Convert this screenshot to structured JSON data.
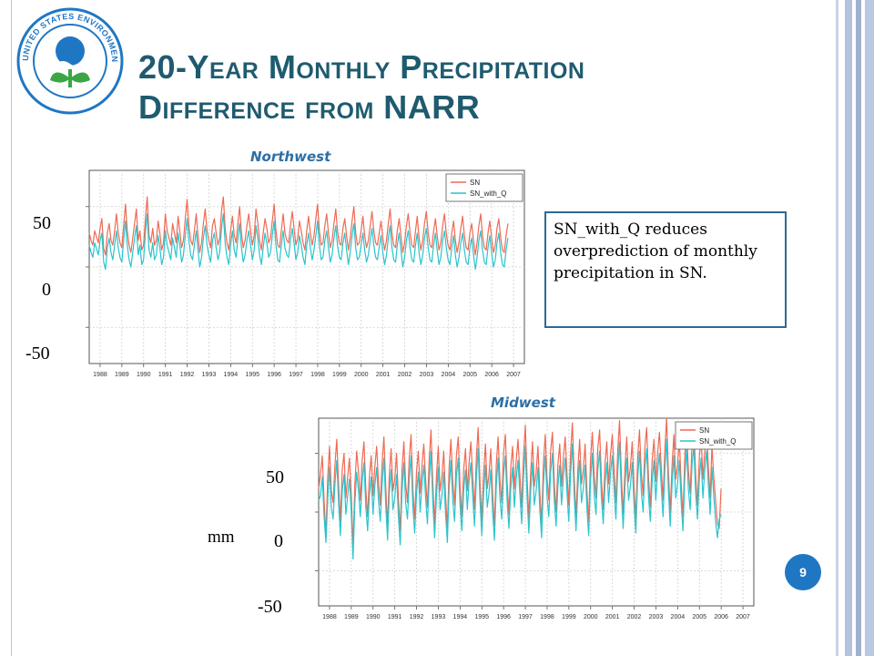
{
  "slide": {
    "title_line1": "20-Year Monthly Precipitation",
    "title_line2": "Difference from NARR",
    "callout": "SN_with_Q reduces overprediction of monthly precipitation in SN.",
    "page_number": "9",
    "unit_label": "mm",
    "logo_text": "UNITED STATES ENVIRONMENTAL PROTECTION AGENCY"
  },
  "colors": {
    "title": "#1f5b6f",
    "sn": "#ef6a54",
    "sn_with_q": "#2bc4cc",
    "accent": "#1f77c4"
  },
  "chart_data": [
    {
      "type": "line",
      "title": "Northwest",
      "x_start": 1987.5,
      "x_step_years": 0.0833,
      "x_range": [
        1987.5,
        2007.5
      ],
      "ylim": [
        -80,
        80
      ],
      "yticks_overlay": [
        "50",
        "0",
        "-50"
      ],
      "inner_yticks": [
        -50,
        0,
        50
      ],
      "xticks": [
        "1988",
        "1989",
        "1990",
        "1991",
        "1992",
        "1993",
        "1994",
        "1995",
        "1996",
        "1997",
        "1998",
        "1999",
        "2000",
        "2001",
        "2002",
        "2003",
        "2004",
        "2005",
        "2006",
        "2007"
      ],
      "grid": true,
      "legend_position": "top-right",
      "series": [
        {
          "name": "SN",
          "values": [
            28,
            22,
            18,
            30,
            25,
            20,
            32,
            40,
            15,
            10,
            28,
            36,
            22,
            18,
            30,
            44,
            28,
            20,
            16,
            34,
            52,
            30,
            18,
            12,
            24,
            36,
            48,
            22,
            30,
            14,
            18,
            40,
            58,
            26,
            20,
            32,
            18,
            22,
            38,
            28,
            14,
            20,
            44,
            30,
            24,
            18,
            36,
            28,
            20,
            42,
            30,
            16,
            22,
            40,
            56,
            34,
            22,
            18,
            30,
            44,
            26,
            12,
            20,
            36,
            48,
            30,
            22,
            16,
            34,
            40,
            28,
            18,
            24,
            46,
            58,
            32,
            20,
            14,
            30,
            42,
            26,
            20,
            36,
            50,
            28,
            16,
            22,
            34,
            44,
            30,
            18,
            26,
            48,
            36,
            22,
            14,
            28,
            40,
            32,
            20,
            24,
            38,
            52,
            30,
            18,
            16,
            30,
            44,
            28,
            22,
            20,
            34,
            46,
            32,
            18,
            24,
            38,
            30,
            20,
            14,
            30,
            42,
            28,
            18,
            26,
            40,
            52,
            30,
            18,
            20,
            34,
            44,
            28,
            16,
            22,
            36,
            48,
            30,
            20,
            18,
            32,
            40,
            26,
            14,
            24,
            38,
            50,
            28,
            18,
            20,
            30,
            42,
            26,
            16,
            22,
            34,
            46,
            30,
            20,
            18,
            28,
            38,
            24,
            14,
            22,
            36,
            48,
            28,
            18,
            16,
            30,
            40,
            26,
            12,
            20,
            34,
            44,
            28,
            18,
            16,
            30,
            42,
            24,
            14,
            22,
            36,
            46,
            28,
            18,
            16,
            30,
            40,
            26,
            14,
            20,
            34,
            44,
            28,
            18,
            14,
            28,
            38,
            22,
            12,
            20,
            32,
            42,
            26,
            16,
            14,
            28,
            36,
            22,
            10,
            20,
            34,
            44,
            26,
            16,
            14,
            28,
            38,
            24,
            12,
            18,
            32,
            40,
            24,
            14,
            12,
            26,
            36
          ]
        },
        {
          "name": "SN_with_Q",
          "values": [
            18,
            12,
            8,
            20,
            15,
            10,
            22,
            28,
            4,
            -2,
            16,
            24,
            12,
            6,
            18,
            30,
            16,
            8,
            4,
            22,
            38,
            18,
            6,
            0,
            12,
            24,
            34,
            10,
            18,
            2,
            6,
            28,
            44,
            14,
            8,
            20,
            6,
            10,
            26,
            16,
            2,
            8,
            30,
            18,
            12,
            6,
            24,
            16,
            8,
            28,
            18,
            4,
            10,
            26,
            40,
            22,
            10,
            6,
            18,
            30,
            14,
            0,
            8,
            24,
            34,
            18,
            10,
            4,
            22,
            28,
            16,
            6,
            12,
            32,
            44,
            20,
            8,
            2,
            18,
            30,
            14,
            8,
            24,
            36,
            16,
            4,
            10,
            22,
            30,
            18,
            6,
            14,
            34,
            24,
            10,
            2,
            16,
            28,
            20,
            8,
            12,
            26,
            38,
            18,
            6,
            4,
            18,
            30,
            16,
            10,
            8,
            22,
            32,
            20,
            6,
            12,
            26,
            18,
            8,
            2,
            18,
            28,
            16,
            6,
            14,
            26,
            38,
            18,
            6,
            8,
            22,
            30,
            16,
            4,
            10,
            24,
            34,
            18,
            8,
            6,
            20,
            28,
            14,
            2,
            12,
            26,
            36,
            16,
            6,
            8,
            18,
            28,
            14,
            4,
            10,
            22,
            32,
            18,
            8,
            6,
            16,
            26,
            12,
            2,
            10,
            24,
            34,
            16,
            6,
            4,
            18,
            28,
            14,
            0,
            8,
            22,
            30,
            16,
            6,
            4,
            18,
            28,
            12,
            2,
            10,
            24,
            32,
            16,
            6,
            4,
            18,
            28,
            14,
            2,
            8,
            22,
            30,
            16,
            6,
            2,
            16,
            26,
            10,
            0,
            8,
            20,
            28,
            14,
            4,
            2,
            16,
            24,
            10,
            -2,
            8,
            22,
            30,
            14,
            4,
            2,
            16,
            26,
            12,
            0,
            6,
            20,
            28,
            12,
            2,
            0,
            14,
            24
          ]
        }
      ]
    },
    {
      "type": "line",
      "title": "Midwest",
      "x_start": 1987.5,
      "x_step_years": 0.0833,
      "x_range": [
        1987.5,
        2007.5
      ],
      "ylim": [
        -80,
        80
      ],
      "yticks_overlay": [
        "50",
        "0",
        "-50"
      ],
      "inner_yticks": [
        -50,
        0,
        50
      ],
      "xticks": [
        "1988",
        "1989",
        "1990",
        "1991",
        "1992",
        "1993",
        "1994",
        "1995",
        "1996",
        "1997",
        "1998",
        "1999",
        "2000",
        "2001",
        "2002",
        "2003",
        "2004",
        "2005",
        "2006",
        "2007"
      ],
      "grid": true,
      "legend_position": "top-right",
      "series": [
        {
          "name": "SN",
          "values": [
            20,
            32,
            48,
            10,
            -20,
            30,
            56,
            18,
            8,
            40,
            62,
            24,
            -8,
            36,
            50,
            12,
            30,
            46,
            16,
            -30,
            24,
            52,
            34,
            10,
            44,
            60,
            20,
            -4,
            30,
            48,
            14,
            38,
            56,
            26,
            6,
            42,
            64,
            22,
            -12,
            32,
            54,
            18,
            28,
            50,
            12,
            -16,
            36,
            60,
            24,
            8,
            46,
            66,
            20,
            -6,
            34,
            52,
            16,
            40,
            58,
            28,
            4,
            44,
            70,
            24,
            -10,
            30,
            56,
            18,
            30,
            52,
            14,
            -14,
            38,
            62,
            26,
            6,
            48,
            64,
            22,
            -4,
            36,
            54,
            18,
            42,
            60,
            30,
            2,
            46,
            72,
            26,
            -8,
            32,
            58,
            20,
            32,
            54,
            16,
            -12,
            40,
            64,
            28,
            8,
            50,
            66,
            24,
            -2,
            38,
            56,
            20,
            44,
            62,
            32,
            4,
            48,
            74,
            28,
            -6,
            34,
            60,
            22,
            34,
            56,
            18,
            -10,
            42,
            66,
            30,
            10,
            52,
            68,
            26,
            0,
            40,
            58,
            22,
            46,
            64,
            34,
            6,
            50,
            76,
            30,
            -4,
            36,
            62,
            24,
            36,
            58,
            20,
            -8,
            44,
            68,
            32,
            12,
            54,
            70,
            28,
            2,
            42,
            60,
            24,
            48,
            66,
            36,
            8,
            52,
            78,
            32,
            -2,
            38,
            64,
            26,
            38,
            60,
            22,
            -6,
            46,
            70,
            34,
            14,
            56,
            72,
            30,
            4,
            44,
            62,
            26,
            50,
            68,
            38,
            10,
            54,
            80,
            34,
            0,
            40,
            66,
            28,
            40,
            62,
            24,
            -4,
            48,
            72,
            36,
            16,
            58,
            74,
            32,
            6,
            46,
            64,
            28,
            52,
            70,
            40,
            12,
            56,
            30,
            10,
            -10,
            -14,
            20
          ]
        },
        {
          "name": "SN_with_Q",
          "values": [
            10,
            14,
            30,
            -4,
            -26,
            12,
            38,
            4,
            -6,
            24,
            44,
            8,
            -20,
            18,
            32,
            -2,
            14,
            28,
            0,
            -40,
            8,
            34,
            18,
            -4,
            26,
            42,
            4,
            -16,
            14,
            30,
            -2,
            22,
            38,
            10,
            -8,
            24,
            46,
            6,
            -24,
            16,
            36,
            2,
            12,
            32,
            -4,
            -28,
            18,
            42,
            8,
            -6,
            28,
            48,
            4,
            -18,
            16,
            34,
            0,
            24,
            40,
            12,
            -10,
            26,
            52,
            8,
            -22,
            14,
            38,
            2,
            14,
            34,
            -2,
            -26,
            20,
            44,
            10,
            -8,
            30,
            46,
            6,
            -16,
            18,
            36,
            2,
            26,
            42,
            14,
            -12,
            28,
            54,
            10,
            -20,
            16,
            40,
            4,
            16,
            36,
            0,
            -24,
            22,
            46,
            12,
            -6,
            32,
            48,
            8,
            -14,
            20,
            38,
            4,
            28,
            44,
            16,
            -10,
            30,
            56,
            12,
            -18,
            18,
            42,
            6,
            18,
            38,
            2,
            -22,
            24,
            48,
            14,
            -4,
            34,
            50,
            10,
            -12,
            22,
            40,
            6,
            30,
            46,
            18,
            -8,
            32,
            58,
            14,
            -16,
            20,
            44,
            8,
            20,
            40,
            4,
            -20,
            26,
            50,
            16,
            -2,
            36,
            52,
            12,
            -10,
            24,
            42,
            8,
            32,
            48,
            20,
            -6,
            34,
            60,
            16,
            -14,
            22,
            46,
            10,
            22,
            42,
            6,
            -18,
            28,
            52,
            18,
            0,
            38,
            54,
            14,
            -8,
            26,
            44,
            10,
            34,
            50,
            22,
            -4,
            36,
            62,
            18,
            -12,
            24,
            48,
            12,
            24,
            44,
            8,
            -16,
            30,
            54,
            20,
            2,
            40,
            56,
            16,
            -6,
            28,
            46,
            12,
            36,
            52,
            24,
            -2,
            38,
            14,
            -8,
            -22,
            -6,
            -2
          ]
        }
      ]
    }
  ]
}
